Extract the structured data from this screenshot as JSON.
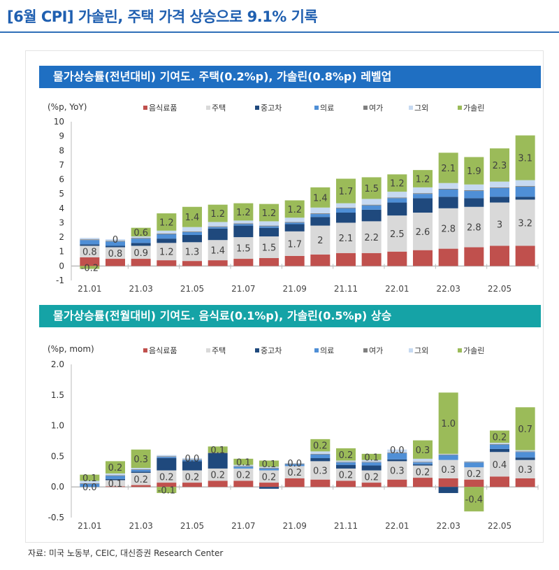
{
  "title": "[6월 CPI] 가솔린, 주택 가격 상승으로 9.1% 기록",
  "source": "자료: 미국 노동부, CEIC, 대신증권 Research Center",
  "chart_data": [
    {
      "type": "bar",
      "stacked": true,
      "title": "물가상승률(전년대비) 기여도. 주택(0.2%p), 가솔린(0.8%p) 레벨업",
      "ylabel": "(%p, YoY)",
      "ylim": [
        -1,
        10
      ],
      "yticks": [
        "-1",
        "0",
        "1",
        "2",
        "3",
        "4",
        "5",
        "6",
        "7",
        "8",
        "9",
        "10"
      ],
      "legend": "top",
      "categories": [
        "21.01",
        "21.02",
        "21.03",
        "21.04",
        "21.05",
        "21.06",
        "21.07",
        "21.08",
        "21.09",
        "21.10",
        "21.11",
        "21.12",
        "22.01",
        "22.02",
        "22.03",
        "22.04",
        "22.05",
        "22.06"
      ],
      "xtick_labels": [
        "21.01",
        "",
        "21.03",
        "",
        "21.05",
        "",
        "21.07",
        "",
        "21.09",
        "",
        "21.11",
        "",
        "22.01",
        "",
        "22.03",
        "",
        "22.05",
        ""
      ],
      "series": [
        {
          "name": "음식료품",
          "color": "#c0504d",
          "values": [
            0.6,
            0.5,
            0.5,
            0.4,
            0.35,
            0.4,
            0.5,
            0.55,
            0.7,
            0.8,
            0.9,
            0.9,
            1.0,
            1.1,
            1.2,
            1.3,
            1.4,
            1.4
          ]
        },
        {
          "name": "주택",
          "color": "#d9d9d9",
          "labeled": true,
          "values": [
            0.8,
            0.8,
            0.9,
            1.2,
            1.3,
            1.4,
            1.5,
            1.5,
            1.7,
            2.0,
            2.1,
            2.2,
            2.5,
            2.6,
            2.8,
            2.8,
            3.0,
            3.2
          ]
        },
        {
          "name": "중고차",
          "color": "#1f497d",
          "values": [
            0.1,
            0.1,
            0.2,
            0.3,
            0.5,
            0.8,
            0.8,
            0.6,
            0.5,
            0.6,
            0.7,
            0.8,
            0.9,
            1.0,
            0.8,
            0.6,
            0.4,
            0.2
          ]
        },
        {
          "name": "의료",
          "color": "#4f8fd6",
          "values": [
            0.3,
            0.3,
            0.3,
            0.3,
            0.2,
            0.1,
            0.1,
            0.1,
            0.1,
            0.2,
            0.3,
            0.3,
            0.3,
            0.3,
            0.5,
            0.5,
            0.6,
            0.7
          ]
        },
        {
          "name": "여가",
          "color": "#7f7f7f",
          "values": [
            0.05,
            0.05,
            0.05,
            0.05,
            0.05,
            0.05,
            0.05,
            0.05,
            0.05,
            0.05,
            0.05,
            0.05,
            0.05,
            0.05,
            0.05,
            0.05,
            0.05,
            0.05
          ]
        },
        {
          "name": "그외",
          "color": "#c6d9f1",
          "values": [
            0.1,
            0.1,
            0.1,
            0.2,
            0.3,
            0.3,
            0.2,
            0.3,
            0.3,
            0.4,
            0.3,
            0.4,
            0.4,
            0.4,
            0.4,
            0.4,
            0.4,
            0.4
          ]
        },
        {
          "name": "가솔린",
          "color": "#9bbb59",
          "labeled": true,
          "values": [
            -0.2,
            0.0,
            0.6,
            1.2,
            1.4,
            1.2,
            1.2,
            1.2,
            1.2,
            1.4,
            1.7,
            1.5,
            1.2,
            1.2,
            2.1,
            1.9,
            2.3,
            3.1
          ]
        }
      ]
    },
    {
      "type": "bar",
      "stacked": true,
      "title": "물가상승률(전월대비) 기여도. 음식료(0.1%p), 가솔린(0.5%p) 상승",
      "ylabel": "(%p, mom)",
      "ylim": [
        -0.5,
        2.0
      ],
      "yticks": [
        "-0.5",
        "0.0",
        "0.5",
        "1.0",
        "1.5",
        "2.0"
      ],
      "legend": "top",
      "categories": [
        "21.01",
        "21.02",
        "21.03",
        "21.04",
        "21.05",
        "21.06",
        "21.07",
        "21.08",
        "21.09",
        "21.10",
        "21.11",
        "21.12",
        "22.01",
        "22.02",
        "22.03",
        "22.04",
        "22.05",
        "22.06"
      ],
      "xtick_labels": [
        "21.01",
        "",
        "21.03",
        "",
        "21.05",
        "",
        "21.07",
        "",
        "21.09",
        "",
        "21.11",
        "",
        "22.01",
        "",
        "22.03",
        "",
        "22.05",
        ""
      ],
      "series": [
        {
          "name": "음식료품",
          "color": "#c0504d",
          "values": [
            0.0,
            0.01,
            0.03,
            0.07,
            0.07,
            0.1,
            0.1,
            0.07,
            0.14,
            0.12,
            0.1,
            0.07,
            0.12,
            0.15,
            0.14,
            0.12,
            0.17,
            0.14
          ]
        },
        {
          "name": "주택",
          "color": "#d9d9d9",
          "labeled": true,
          "values": [
            0.0,
            0.1,
            0.2,
            0.2,
            0.2,
            0.2,
            0.2,
            0.2,
            0.2,
            0.3,
            0.2,
            0.2,
            0.3,
            0.2,
            0.3,
            0.2,
            0.4,
            0.3
          ]
        },
        {
          "name": "중고차",
          "color": "#1f497d",
          "values": [
            0.0,
            0.02,
            0.02,
            0.2,
            0.15,
            0.25,
            0.0,
            -0.03,
            0.0,
            0.05,
            0.06,
            0.08,
            0.03,
            0.02,
            -0.1,
            0.0,
            0.05,
            0.04
          ]
        },
        {
          "name": "의료",
          "color": "#4f8fd6",
          "values": [
            0.05,
            0.05,
            0.03,
            0.02,
            0.02,
            0.0,
            0.03,
            0.03,
            0.03,
            0.06,
            0.04,
            0.05,
            0.1,
            0.03,
            0.08,
            0.08,
            0.07,
            0.09
          ]
        },
        {
          "name": "여가",
          "color": "#7f7f7f",
          "values": [
            0.01,
            0.01,
            0.01,
            0.01,
            0.01,
            0.01,
            0.01,
            0.01,
            0.01,
            0.01,
            0.01,
            0.01,
            0.01,
            0.01,
            0.01,
            0.01,
            0.01,
            0.01
          ]
        },
        {
          "name": "그외",
          "color": "#c6d9f1",
          "values": [
            0.04,
            0.03,
            0.02,
            0.02,
            0.02,
            0.0,
            0.02,
            0.02,
            0.01,
            0.04,
            0.02,
            0.03,
            0.05,
            0.05,
            0.01,
            0.01,
            0.02,
            0.02
          ]
        },
        {
          "name": "가솔린",
          "color": "#9bbb59",
          "labeled": true,
          "values": [
            0.1,
            0.2,
            0.3,
            -0.1,
            0.0,
            0.1,
            0.1,
            0.1,
            0.0,
            0.2,
            0.2,
            0.1,
            0.0,
            0.3,
            1.0,
            -0.4,
            0.2,
            0.7
          ]
        }
      ]
    }
  ]
}
